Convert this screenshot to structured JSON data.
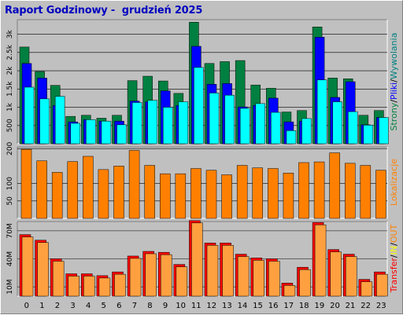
{
  "title": "Raport Godzinowy -  grudzień 2025",
  "colors": {
    "strony": "#008040",
    "pliki": "#0000ff",
    "wywolania": "#00ffff",
    "lokalizacje": "#ff8000",
    "transfer": "#ff0000",
    "in": "#ffff00",
    "out": "#ff8000",
    "transfer_bar": "#ffa040",
    "plot_bg": "#c0c0c0"
  },
  "side_labels": {
    "top": [
      {
        "text": "Strony",
        "color": "#008040"
      },
      {
        "text": "/",
        "color": "#000000"
      },
      {
        "text": "Pliki",
        "color": "#0000ff"
      },
      {
        "text": "/",
        "color": "#000000"
      },
      {
        "text": "Wywolania",
        "color": "#008080"
      }
    ],
    "middle": [
      {
        "text": "Lokalizacje",
        "color": "#ff8000"
      }
    ],
    "bottom": [
      {
        "text": "Transfer",
        "color": "#ff0000"
      },
      {
        "text": "/",
        "color": "#000000"
      },
      {
        "text": "IN",
        "color": "#ffff00"
      },
      {
        "text": "/",
        "color": "#000000"
      },
      {
        "text": "OUT",
        "color": "#ff8000"
      }
    ]
  },
  "chart_data": [
    {
      "type": "bar",
      "x": [
        0,
        1,
        2,
        3,
        4,
        5,
        6,
        7,
        8,
        9,
        10,
        11,
        12,
        13,
        14,
        15,
        16,
        17,
        18,
        19,
        20,
        21,
        22,
        23
      ],
      "yticks": [
        "500",
        "1k",
        "1.5k",
        "2k",
        "2.5k",
        "3k"
      ],
      "ylim": [
        0,
        3400
      ],
      "series": [
        {
          "name": "Strony",
          "values": [
            2650,
            1980,
            1600,
            750,
            780,
            700,
            780,
            1730,
            1850,
            1720,
            1380,
            3330,
            2200,
            2250,
            2280,
            1610,
            1520,
            870,
            910,
            3200,
            1800,
            1780,
            780,
            910
          ]
        },
        {
          "name": "Pliki",
          "values": [
            2200,
            1800,
            1050,
            600,
            660,
            620,
            620,
            1170,
            1150,
            1450,
            1050,
            2670,
            1630,
            1650,
            1010,
            1050,
            1250,
            600,
            620,
            2920,
            1270,
            1700,
            520,
            720
          ]
        },
        {
          "name": "Wywolania",
          "values": [
            1550,
            1230,
            1300,
            560,
            660,
            620,
            520,
            1130,
            1190,
            1000,
            1150,
            2090,
            1390,
            1330,
            970,
            1100,
            860,
            360,
            690,
            1750,
            1150,
            880,
            510,
            720
          ]
        }
      ]
    },
    {
      "type": "bar",
      "x": [
        0,
        1,
        2,
        3,
        4,
        5,
        6,
        7,
        8,
        9,
        10,
        11,
        12,
        13,
        14,
        15,
        16,
        17,
        18,
        19,
        20,
        21,
        22,
        23
      ],
      "yticks": [
        "50",
        "100",
        "200"
      ],
      "ylim": [
        0,
        205
      ],
      "series": [
        {
          "name": "Lokalizacje",
          "values": [
            198,
            165,
            132,
            163,
            178,
            140,
            150,
            195,
            152,
            128,
            128,
            143,
            138,
            125,
            152,
            145,
            143,
            130,
            160,
            162,
            188,
            158,
            152,
            138
          ]
        }
      ]
    },
    {
      "type": "bar",
      "x": [
        0,
        1,
        2,
        3,
        4,
        5,
        6,
        7,
        8,
        9,
        10,
        11,
        12,
        13,
        14,
        15,
        16,
        17,
        18,
        19,
        20,
        21,
        22,
        23
      ],
      "yticks": [
        "10M",
        "40M",
        "70M"
      ],
      "ylim": [
        0,
        80
      ],
      "series": [
        {
          "name": "Transfer",
          "values": [
            66,
            60,
            40,
            24,
            24,
            22,
            26,
            43,
            48,
            47,
            34,
            81,
            57,
            57,
            45,
            41,
            40,
            14,
            31,
            79,
            50,
            45,
            18,
            26
          ]
        }
      ]
    }
  ]
}
